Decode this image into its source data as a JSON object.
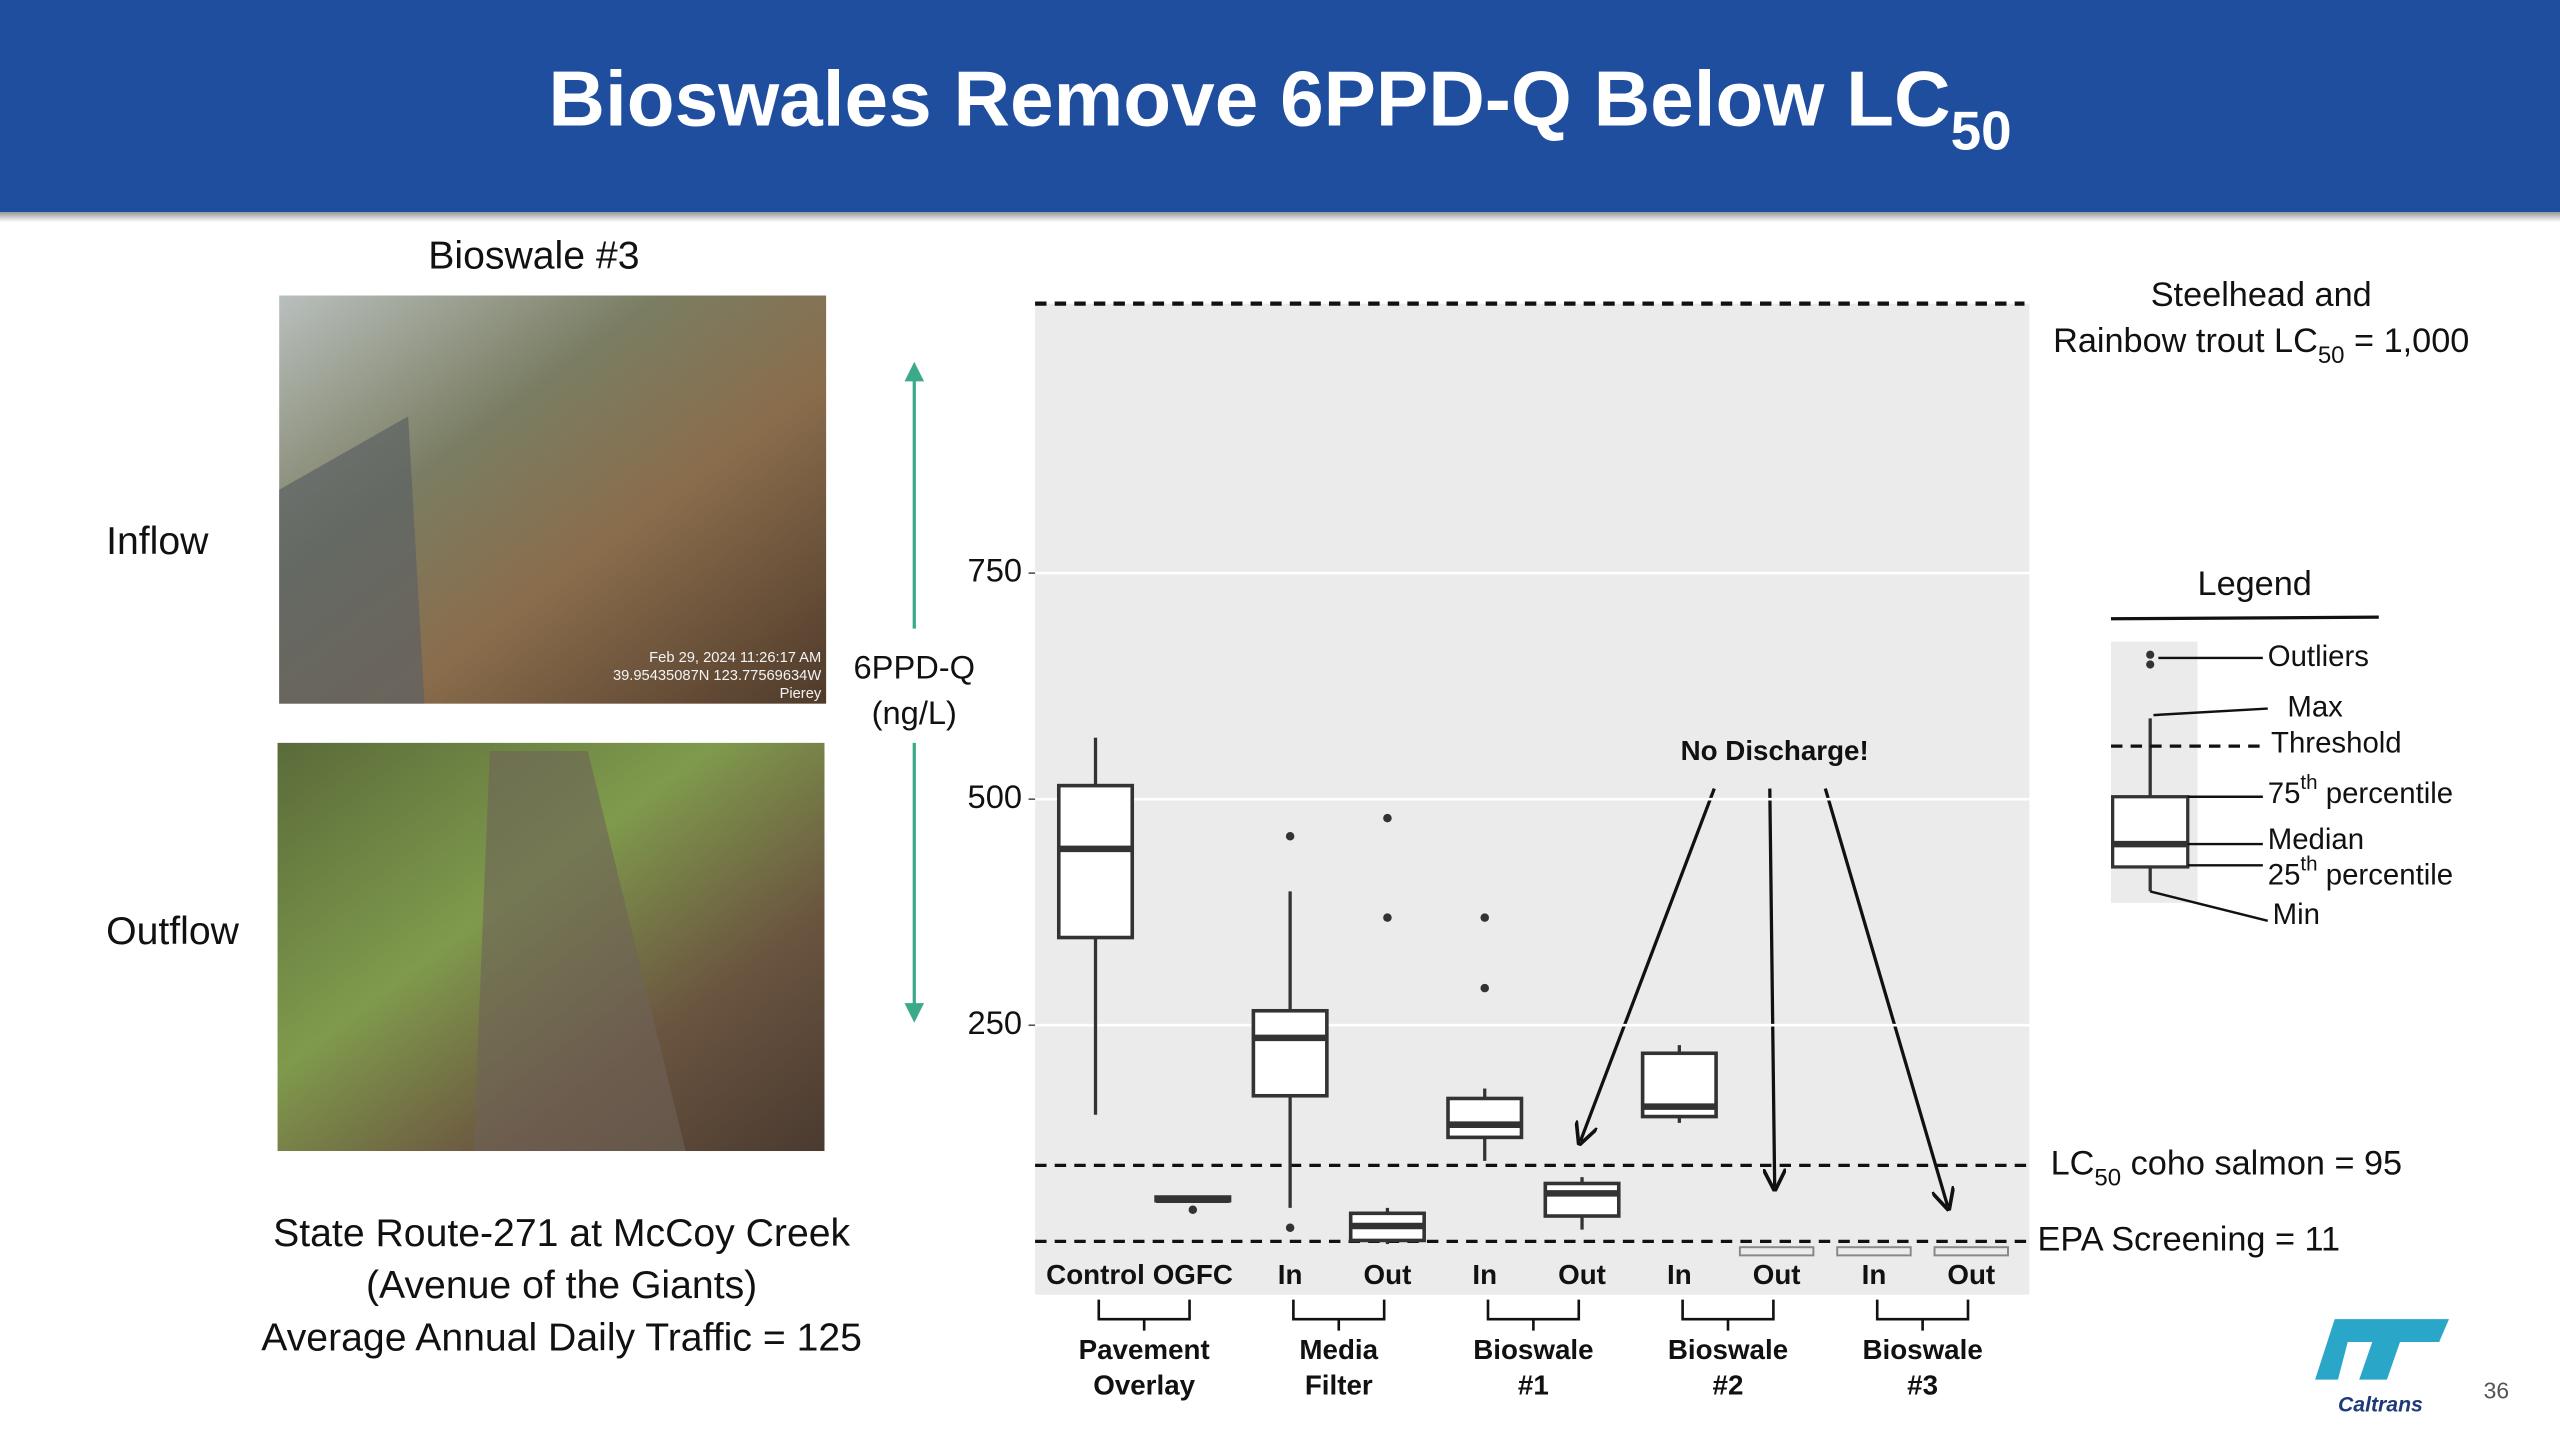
{
  "header": {
    "title": "Bioswales Remove 6PPD-Q Below LC",
    "title_sub": "50"
  },
  "site": {
    "photo_title": "Bioswale #3",
    "inflow_label": "Inflow",
    "outflow_label": "Outflow",
    "photo_stamp": "Feb 29, 2024 11:26:17 AM\n39.95435087N 123.77569634W\nPierey",
    "caption": "State Route-271 at McCoy Creek\n(Avenue of the Giants)\nAverage Annual Daily Traffic = 125"
  },
  "chart_data": {
    "type": "box",
    "y_label": "6PPD-Q\n(ng/L)",
    "categories": [
      "Control",
      "OGFC",
      "In",
      "Out",
      "In",
      "Out",
      "In",
      "Out",
      "In",
      "Out"
    ],
    "groups": [
      "Pavement\nOverlay",
      "Media\nFilter",
      "Bioswale\n#1",
      "Bioswale\n#2",
      "Bioswale\n#3"
    ],
    "boxes": [
      {
        "min": 151,
        "q1": 347,
        "median": 445,
        "q3": 515,
        "max": 568,
        "outliers": []
      },
      {
        "min": 56,
        "q1": 56,
        "median": 57,
        "q3": 60,
        "max": 60,
        "outliers": [
          46
        ]
      },
      {
        "min": 48,
        "q1": 172,
        "median": 236,
        "q3": 266,
        "max": 398,
        "outliers": [
          459,
          26
        ]
      },
      {
        "min": 8,
        "q1": 12,
        "median": 28,
        "q3": 42,
        "max": 48,
        "outliers": [
          479,
          369
        ]
      },
      {
        "min": 100,
        "q1": 126,
        "median": 140,
        "q3": 169,
        "max": 180,
        "outliers": [
          369,
          291
        ]
      },
      {
        "min": 24,
        "q1": 39,
        "median": 64,
        "q3": 75,
        "max": 82,
        "outliers": []
      },
      {
        "min": 142,
        "q1": 149,
        "median": 160,
        "q3": 219,
        "max": 228,
        "outliers": []
      },
      null,
      null,
      null
    ],
    "ylim": [
      -48,
      1048
    ],
    "yticks": [
      250,
      500,
      750
    ],
    "grid": true,
    "thresholds": [
      {
        "value": 1000,
        "label": "Steelhead and\nRainbow trout LC",
        "label_sub": "50",
        "label_end": " = 1,000"
      },
      {
        "value": 95,
        "label": "LC",
        "label_sub": "50",
        "label_end": " coho salmon = 95"
      },
      {
        "value": 11,
        "label": "EPA Screening = 11"
      }
    ],
    "annotation": "No Discharge!",
    "legend": {
      "title": "Legend",
      "items": [
        {
          "text": "Outliers"
        },
        {
          "text": "Max"
        },
        {
          "text": "Threshold"
        },
        {
          "text": "75",
          "sup": "th",
          "end": "  percentile"
        },
        {
          "text": "Median"
        },
        {
          "text": "25",
          "sup": "th",
          "end": "  percentile"
        },
        {
          "text": "Min"
        }
      ]
    }
  },
  "footer": {
    "logo": "Caltrans",
    "page": "36"
  }
}
